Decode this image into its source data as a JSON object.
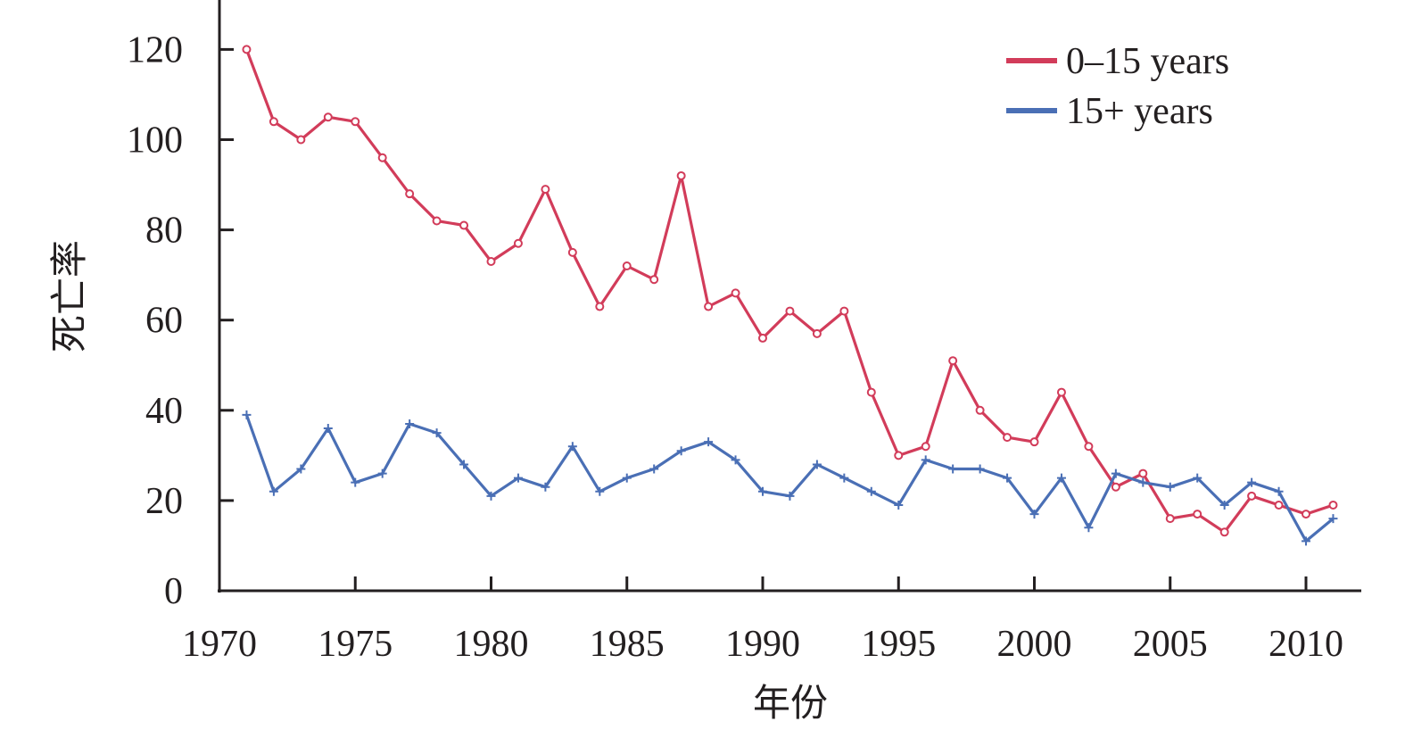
{
  "chart_data": {
    "type": "line",
    "xlabel": "年份",
    "ylabel": "死亡率",
    "xlim": [
      1970,
      2012
    ],
    "ylim": [
      0,
      120
    ],
    "x_ticks": [
      "1970",
      "1975",
      "1980",
      "1985",
      "1990",
      "1995",
      "2000",
      "2005",
      "2010"
    ],
    "y_ticks": [
      "0",
      "20",
      "40",
      "60",
      "80",
      "100",
      "120"
    ],
    "legend_position": "top-right",
    "grid": false,
    "x": [
      1971,
      1972,
      1973,
      1974,
      1975,
      1976,
      1977,
      1978,
      1979,
      1980,
      1981,
      1982,
      1983,
      1984,
      1985,
      1986,
      1987,
      1988,
      1989,
      1990,
      1991,
      1992,
      1993,
      1994,
      1995,
      1996,
      1997,
      1998,
      1999,
      2000,
      2001,
      2002,
      2003,
      2004,
      2005,
      2006,
      2007,
      2008,
      2009,
      2010,
      2011
    ],
    "series": [
      {
        "name": "0–15 years",
        "color": "#d23c5a",
        "marker": "circle",
        "values": [
          120,
          104,
          100,
          105,
          104,
          96,
          88,
          82,
          81,
          73,
          77,
          89,
          75,
          63,
          72,
          69,
          92,
          63,
          66,
          56,
          62,
          57,
          62,
          44,
          30,
          32,
          51,
          40,
          34,
          33,
          44,
          32,
          23,
          26,
          16,
          17,
          13,
          21,
          19,
          17,
          19
        ]
      },
      {
        "name": "15+ years",
        "color": "#4a6fb5",
        "marker": "plus",
        "values": [
          39,
          22,
          27,
          36,
          24,
          26,
          37,
          35,
          28,
          21,
          25,
          23,
          32,
          22,
          25,
          27,
          31,
          33,
          29,
          22,
          21,
          28,
          25,
          22,
          19,
          29,
          27,
          27,
          25,
          17,
          25,
          14,
          26,
          24,
          23,
          25,
          19,
          24,
          22,
          11,
          16
        ]
      }
    ]
  }
}
